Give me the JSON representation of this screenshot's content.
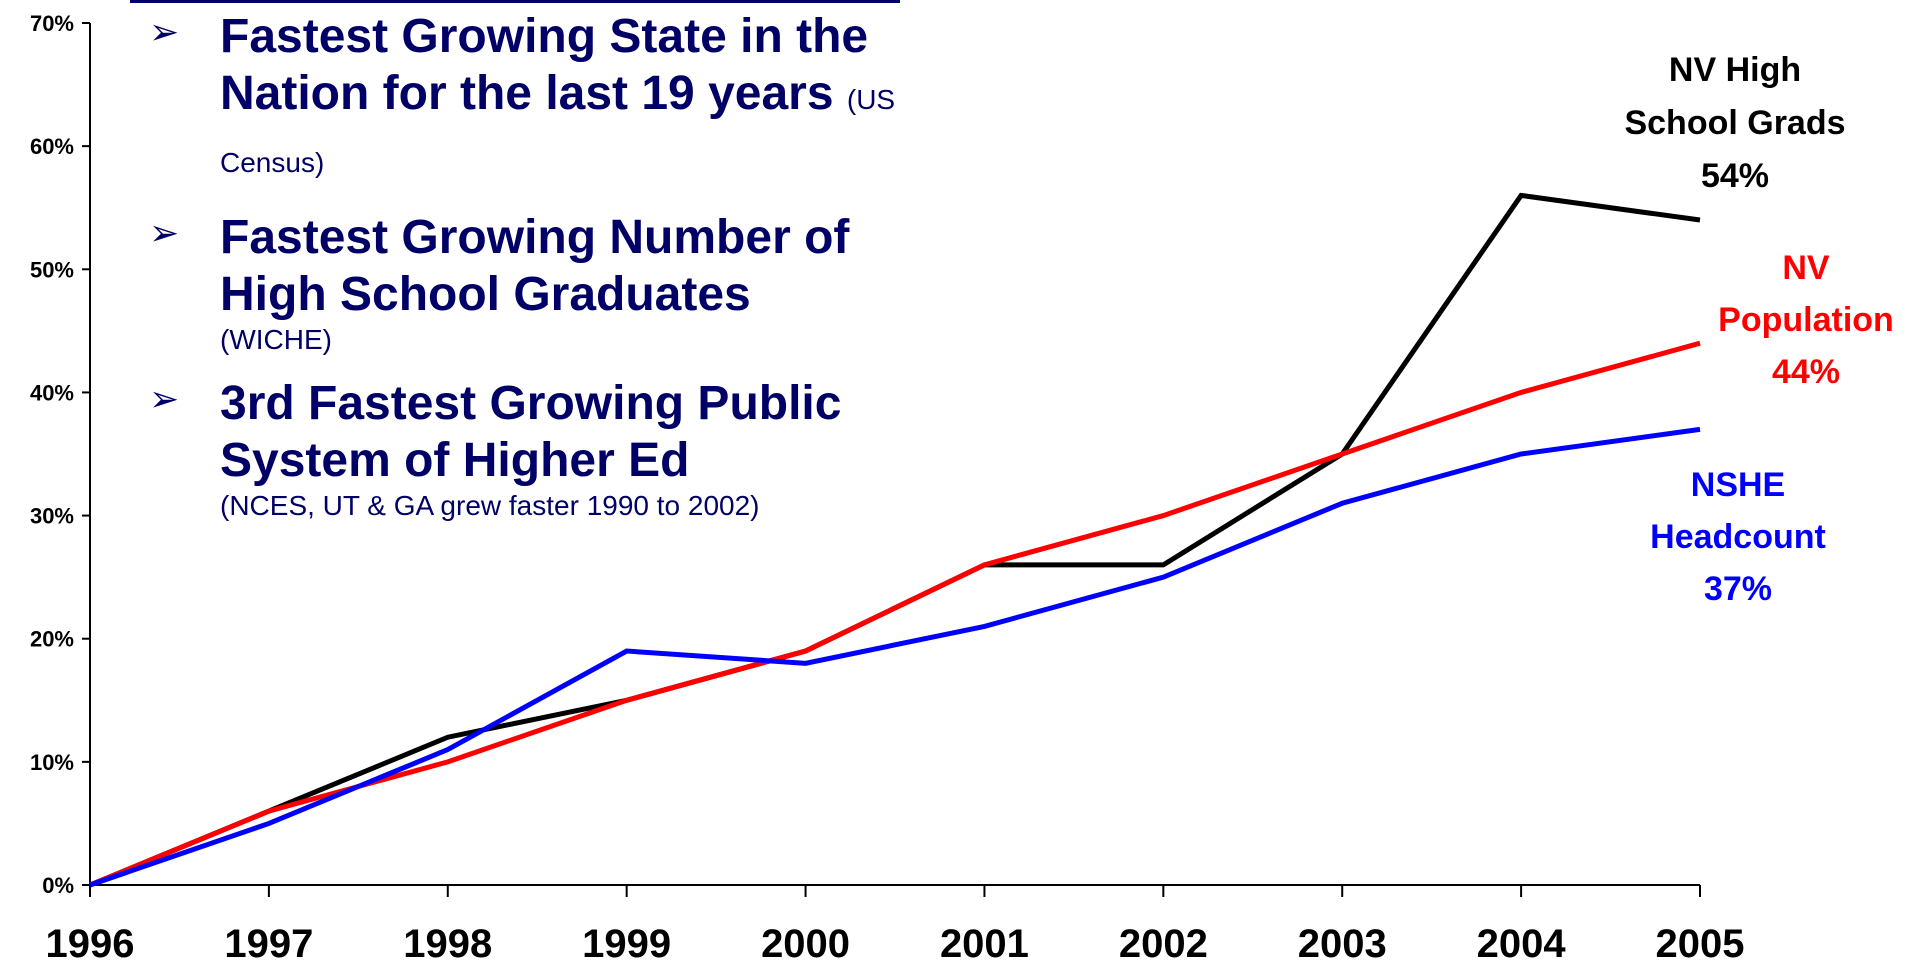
{
  "bullets": [
    {
      "text": "Fastest Growing State in the Nation for the last 19 years",
      "source": "(US Census)"
    },
    {
      "text": "Fastest Growing Number of High School Graduates",
      "source": "(WICHE)"
    },
    {
      "text": "3rd Fastest Growing Public System of Higher Ed",
      "source": "(NCES, UT & GA grew faster 1990 to 2002)"
    }
  ],
  "chart_data": {
    "type": "line",
    "x": [
      "1996",
      "1997",
      "1998",
      "1999",
      "2000",
      "2001",
      "2002",
      "2003",
      "2004",
      "2005"
    ],
    "ylim": [
      0,
      70
    ],
    "yticks": [
      "0%",
      "10%",
      "20%",
      "30%",
      "40%",
      "50%",
      "60%",
      "70%"
    ],
    "grid": false,
    "series": [
      {
        "name": "NV High School Grads",
        "label_lines": [
          "NV High",
          "School Grads",
          "54%"
        ],
        "color": "#000000",
        "values": [
          0,
          6,
          12,
          15,
          19,
          26,
          26,
          35,
          56,
          54
        ]
      },
      {
        "name": "NV Population",
        "label_lines": [
          "NV",
          "Population",
          "44%"
        ],
        "color": "#ff0000",
        "values": [
          0,
          6,
          10,
          15,
          19,
          26,
          30,
          35,
          40,
          44
        ]
      },
      {
        "name": "NSHE Headcount",
        "label_lines": [
          "NSHE",
          "Headcount",
          "37%"
        ],
        "color": "#0000ff",
        "values": [
          0,
          5,
          11,
          19,
          18,
          21,
          25,
          31,
          35,
          37
        ]
      }
    ]
  }
}
